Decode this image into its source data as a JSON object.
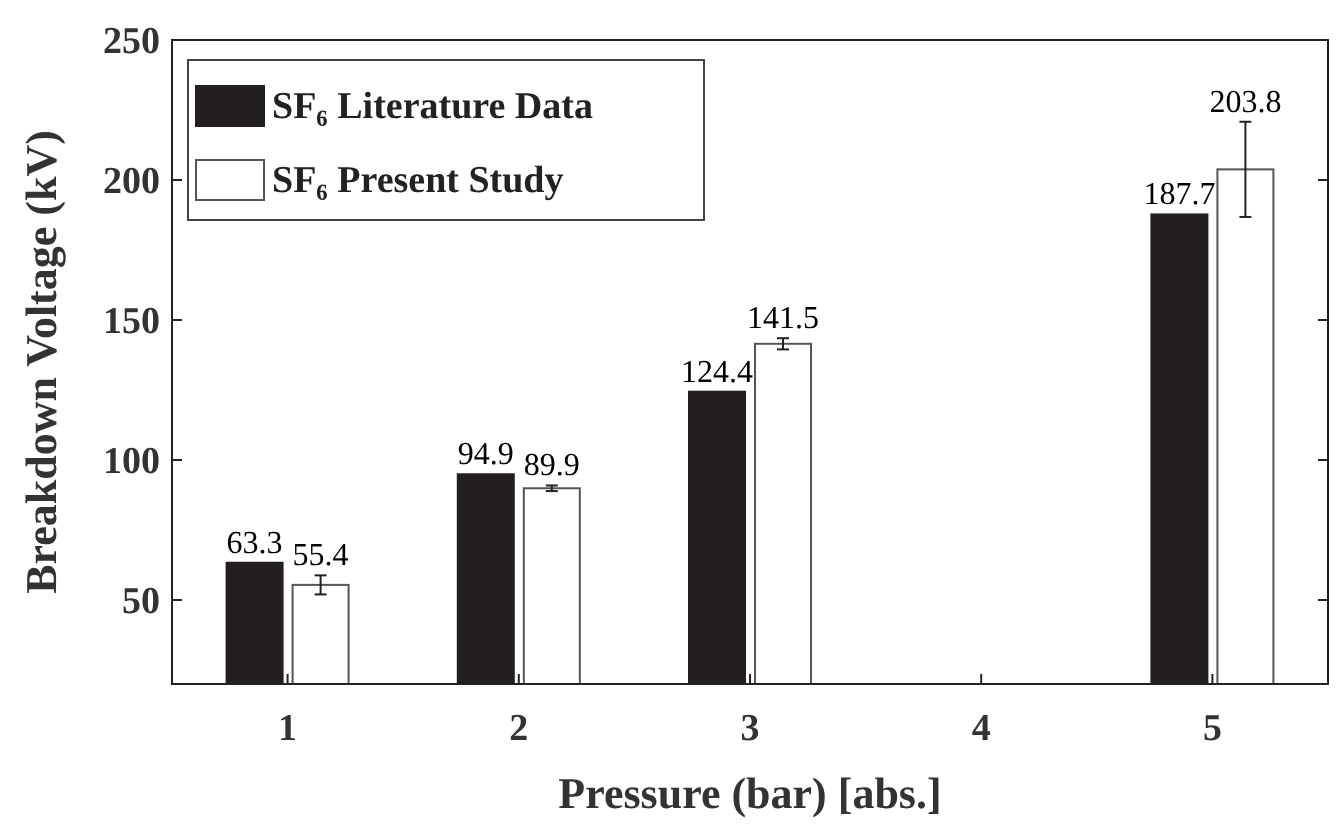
{
  "chart_data": {
    "type": "bar",
    "xlabel": "Pressure (bar) [abs.]",
    "ylabel": "Breakdown Voltage (kV)",
    "categories": [
      "1",
      "2",
      "3",
      "4",
      "5"
    ],
    "series": [
      {
        "name": "SF₆ Literature Data",
        "color": "#231f20",
        "values": [
          63.3,
          94.9,
          124.4,
          null,
          187.7
        ]
      },
      {
        "name": "SF₆ Present Study",
        "color": "#ffffff",
        "values": [
          55.4,
          89.9,
          141.5,
          null,
          203.8
        ],
        "errors": [
          3.4,
          1,
          2,
          null,
          17
        ]
      }
    ],
    "ylim": [
      20,
      250
    ],
    "yticks": [
      50,
      100,
      150,
      200,
      250
    ],
    "data_labels": true,
    "legend": "top left",
    "grid": false
  }
}
